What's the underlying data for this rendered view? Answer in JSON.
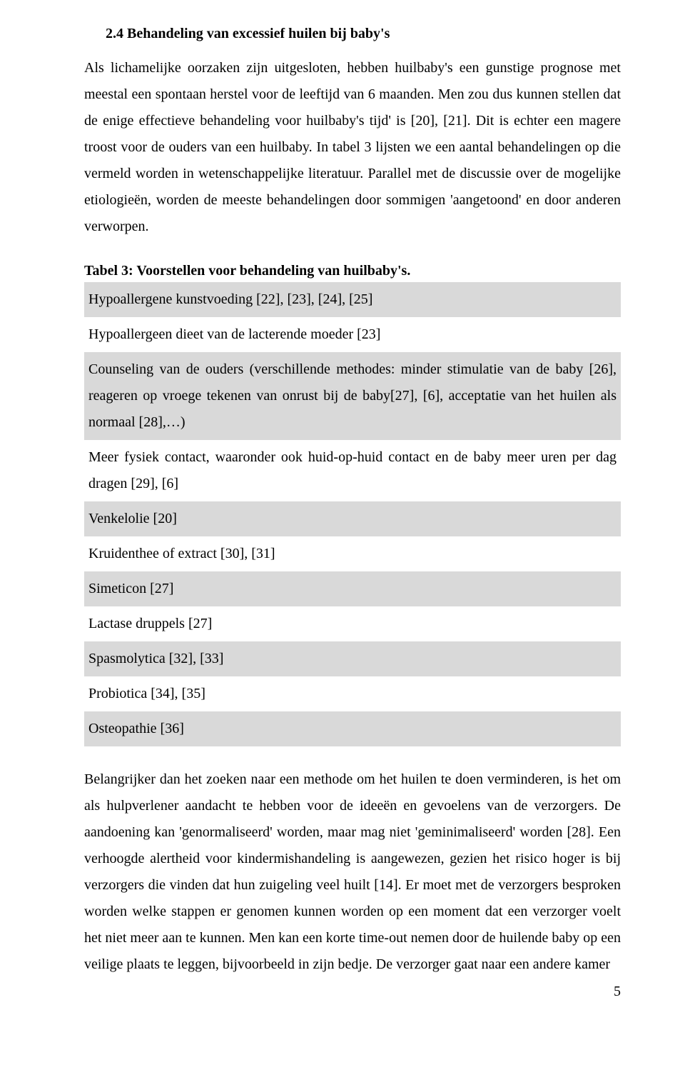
{
  "heading": "2.4 Behandeling van excessief huilen bij baby's",
  "para1": "Als lichamelijke oorzaken zijn uitgesloten, hebben huilbaby's een gunstige prognose met meestal een spontaan herstel voor de leeftijd van 6 maanden. Men zou dus kunnen stellen dat de enige effectieve behandeling voor huilbaby's tijd' is [20], [21]. Dit is echter een magere troost voor de ouders van een huilbaby. In tabel 3 lijsten we een aantal behandelingen op die vermeld worden in wetenschappelijke literatuur. Parallel met de discussie over de mogelijke etiologieën, worden de meeste behandelingen door sommigen 'aangetoond' en door anderen verworpen.",
  "table_caption": "Tabel 3: Voorstellen voor behandeling van huilbaby's.",
  "rows": [
    {
      "text": "Hypoallergene kunstvoeding [22], [23], [24], [25]",
      "shade": true
    },
    {
      "text": "Hypoallergeen dieet van de lacterende moeder [23]",
      "shade": false
    },
    {
      "text": "Counseling van de ouders (verschillende methodes: minder stimulatie van de baby [26], reageren op vroege tekenen van onrust bij de baby[27], [6], acceptatie van het huilen als normaal [28],…)",
      "shade": true
    },
    {
      "text": "Meer fysiek contact, waaronder ook huid-op-huid contact en de baby meer uren per dag dragen [29], [6]",
      "shade": false
    },
    {
      "text": "Venkelolie [20]",
      "shade": true
    },
    {
      "text": "Kruidenthee of extract [30], [31]",
      "shade": false
    },
    {
      "text": "Simeticon [27]",
      "shade": true
    },
    {
      "text": "Lactase druppels [27]",
      "shade": false
    },
    {
      "text": "Spasmolytica [32], [33]",
      "shade": true
    },
    {
      "text": "Probiotica [34], [35]",
      "shade": false
    },
    {
      "text": "Osteopathie [36]",
      "shade": true
    }
  ],
  "para2": "Belangrijker dan het zoeken naar een methode om het huilen te doen verminderen, is het om als hulpverlener aandacht te hebben voor de ideeën en gevoelens van de verzorgers. De aandoening kan 'genormaliseerd' worden, maar mag niet 'geminimaliseerd' worden [28]. Een verhoogde alertheid voor kindermishandeling is aangewezen, gezien het risico hoger is bij verzorgers die vinden dat hun zuigeling veel huilt [14]. Er moet met de verzorgers besproken worden welke stappen er genomen kunnen worden op een moment dat een verzorger voelt het niet meer aan te kunnen. Men kan een korte time-out nemen door de huilende baby op een veilige plaats te leggen, bijvoorbeeld in zijn bedje. De verzorger gaat naar een andere kamer",
  "page_number": "5",
  "colors": {
    "shade": "#d9d9d9",
    "background": "#ffffff",
    "text": "#000000"
  }
}
